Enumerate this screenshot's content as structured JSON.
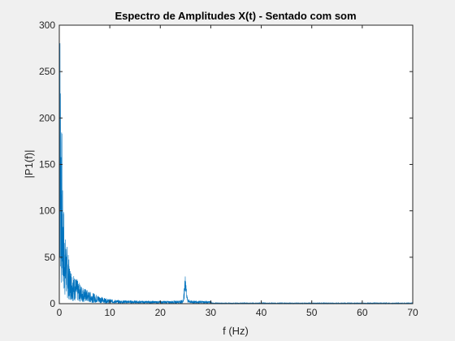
{
  "chart_data": {
    "type": "line",
    "title": "Espectro de Amplitudes X(t) - Sentado com som",
    "xlabel": "f (Hz)",
    "ylabel": "|P1(f)|",
    "xlim": [
      0,
      70
    ],
    "ylim": [
      0,
      300
    ],
    "x_ticks": [
      0,
      10,
      20,
      30,
      40,
      50,
      60,
      70
    ],
    "y_ticks": [
      0,
      50,
      100,
      150,
      200,
      250,
      300
    ],
    "grid": false,
    "line_color": "#0072bd",
    "series": [
      {
        "x": [
          0,
          0.1,
          0.2,
          0.3,
          0.4,
          0.5,
          0.6,
          0.7,
          0.8,
          0.9,
          1.0,
          1.2,
          1.4,
          1.6,
          1.8,
          2.0,
          2.5,
          3,
          3.5,
          4,
          4.5,
          5,
          6,
          7,
          8,
          9,
          10,
          12,
          14,
          16,
          18,
          20,
          22,
          24,
          24.5,
          25,
          25.3,
          25.6,
          26,
          28,
          30,
          30.2,
          40,
          50,
          60,
          70
        ],
        "y": [
          5,
          275,
          245,
          200,
          140,
          170,
          115,
          95,
          85,
          90,
          70,
          60,
          55,
          50,
          45,
          35,
          30,
          25,
          22,
          18,
          16,
          14,
          11,
          9,
          7,
          5,
          4,
          3,
          3,
          2.5,
          2.5,
          2.5,
          2.5,
          3,
          4,
          33,
          8,
          4,
          3,
          2.5,
          2.5,
          0.5,
          0.5,
          0.5,
          0.5,
          0.5
        ]
      }
    ]
  }
}
